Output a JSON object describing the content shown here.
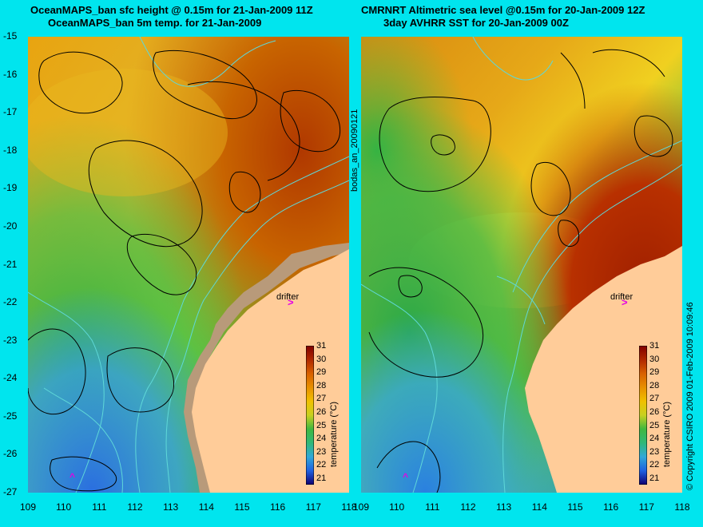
{
  "left_title": {
    "line1": "OceanMAPS_ban sfc height @ 0.15m for 21-Jan-2009 11Z",
    "line2": "OceanMAPS_ban 5m temp. for 21-Jan-2009"
  },
  "right_title": {
    "line1": "CMRNRT Altimetric sea level  @0.15m  for 20-Jan-2009 12Z",
    "line2": "3day AVHRR SST for 20-Jan-2009 00Z"
  },
  "y_ticks": [
    "-15",
    "-16",
    "-17",
    "-18",
    "-19",
    "-20",
    "-21",
    "-22",
    "-23",
    "-24",
    "-25",
    "-26",
    "-27"
  ],
  "x_ticks_left": [
    "109",
    "110",
    "111",
    "112",
    "113",
    "114",
    "115",
    "116",
    "117",
    "118"
  ],
  "x_ticks_right": [
    "109",
    "110",
    "111",
    "112",
    "113",
    "114",
    "115",
    "116",
    "117",
    "118"
  ],
  "middle_label": "bodas_an_20090121",
  "right_side_label": "© Copyright CSIRO 2009   01-Feb-2009 10:09:46",
  "drifter_label_left": "drifter",
  "drifter_label_right": "drifter",
  "drifter_marker": ">",
  "colorbar": {
    "label": "temperature (°C)",
    "ticks": [
      "31",
      "30",
      "29",
      "28",
      "27",
      "26",
      "25",
      "24",
      "23",
      "22",
      "21"
    ]
  },
  "map": {
    "lon_range": [
      109,
      118
    ],
    "lat_range": [
      -27,
      -15
    ],
    "land_color": "#ffcc99",
    "background_color": "#00e5ee",
    "contour_color": "#000000",
    "bathymetry_color": "#5fd8d8",
    "drifter_color": "#e400e4"
  }
}
